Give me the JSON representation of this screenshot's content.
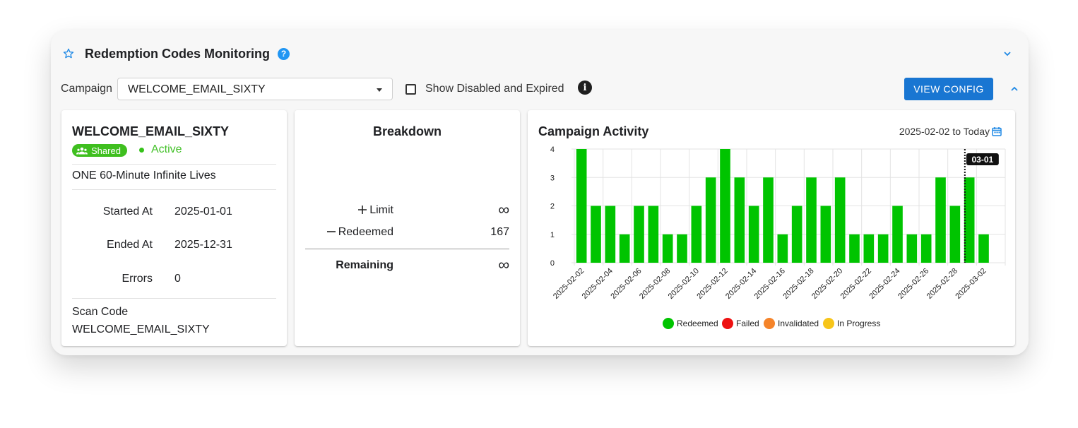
{
  "header": {
    "title": "Redemption Codes Monitoring",
    "help_icon": "?"
  },
  "filter": {
    "campaign_label": "Campaign",
    "campaign_value": "WELCOME_EMAIL_SIXTY",
    "checkbox_label": "Show Disabled and Expired",
    "checkbox_checked": false,
    "info_icon": "i",
    "view_config_label": "VIEW CONFIG"
  },
  "campaign_card": {
    "name": "WELCOME_EMAIL_SIXTY",
    "shared_label": "Shared",
    "status": "Active",
    "reward": "ONE 60-Minute Infinite Lives",
    "started_label": "Started At",
    "started_value": "2025-01-01",
    "ended_label": "Ended At",
    "ended_value": "2025-12-31",
    "errors_label": "Errors",
    "errors_value": "0",
    "scan_code_label": "Scan Code",
    "scan_code_value": "WELCOME_EMAIL_SIXTY"
  },
  "breakdown": {
    "title": "Breakdown",
    "limit_label": "Limit",
    "limit_value": "∞",
    "redeemed_label": "Redeemed",
    "redeemed_value": "167",
    "remaining_label": "Remaining",
    "remaining_value": "∞"
  },
  "activity": {
    "title": "Campaign Activity",
    "date_range": "2025-02-02 to Today",
    "cursor_label": "03-01"
  },
  "colors": {
    "redeemed": "#00c400",
    "failed": "#ee1111",
    "invalidated": "#f5842a",
    "in_progress": "#f7c51a",
    "accent": "#1976d2"
  },
  "chart_data": {
    "type": "bar",
    "categories": [
      "2025-02-02",
      "2025-02-03",
      "2025-02-04",
      "2025-02-05",
      "2025-02-06",
      "2025-02-07",
      "2025-02-08",
      "2025-02-09",
      "2025-02-10",
      "2025-02-11",
      "2025-02-12",
      "2025-02-13",
      "2025-02-14",
      "2025-02-15",
      "2025-02-16",
      "2025-02-17",
      "2025-02-18",
      "2025-02-19",
      "2025-02-20",
      "2025-02-21",
      "2025-02-22",
      "2025-02-23",
      "2025-02-24",
      "2025-02-25",
      "2025-02-26",
      "2025-02-27",
      "2025-02-28",
      "2025-03-01",
      "2025-03-02",
      "2025-03-03"
    ],
    "tick_labels": [
      "2025-02-02",
      "2025-02-04",
      "2025-02-06",
      "2025-02-08",
      "2025-02-10",
      "2025-02-12",
      "2025-02-14",
      "2025-02-16",
      "2025-02-18",
      "2025-02-20",
      "2025-02-22",
      "2025-02-24",
      "2025-02-26",
      "2025-02-28",
      "2025-03-02"
    ],
    "series": [
      {
        "name": "Redeemed",
        "values": [
          4,
          2,
          2,
          1,
          2,
          2,
          1,
          1,
          2,
          3,
          4,
          3,
          2,
          3,
          1,
          2,
          3,
          2,
          3,
          1,
          1,
          1,
          2,
          1,
          1,
          3,
          2,
          3,
          1,
          0
        ]
      }
    ],
    "legend": [
      "Redeemed",
      "Failed",
      "Invalidated",
      "In Progress"
    ],
    "legend_position": "bottom",
    "ylim": [
      0,
      4
    ],
    "yticks": [
      0,
      1,
      2,
      3,
      4
    ],
    "grid": true
  }
}
